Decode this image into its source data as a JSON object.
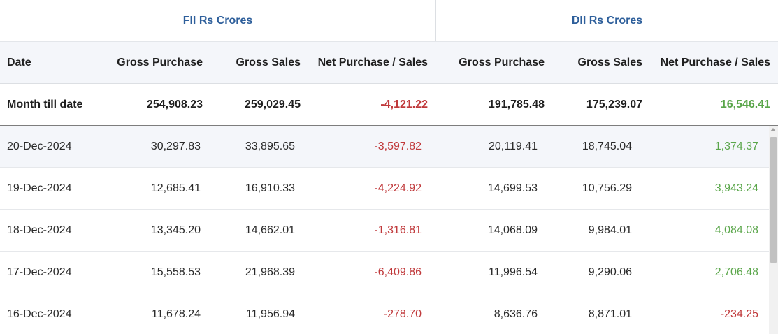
{
  "groups": {
    "fii": "FII Rs Crores",
    "dii": "DII Rs Crores"
  },
  "columns": {
    "date": "Date",
    "fii_gross_purchase": "Gross Purchase",
    "fii_gross_sales": "Gross Sales",
    "fii_net": "Net Purchase / Sales",
    "dii_gross_purchase": "Gross Purchase",
    "dii_gross_sales": "Gross Sales",
    "dii_net": "Net Purchase / Sales"
  },
  "mtd": {
    "label": "Month till date",
    "fii_gp": "254,908.23",
    "fii_gs": "259,029.45",
    "fii_net": "-4,121.22",
    "dii_gp": "191,785.48",
    "dii_gs": "175,239.07",
    "dii_net": "16,546.41"
  },
  "rows": [
    {
      "date": "20-Dec-2024",
      "fii_gp": "30,297.83",
      "fii_gs": "33,895.65",
      "fii_net": "-3,597.82",
      "dii_gp": "20,119.41",
      "dii_gs": "18,745.04",
      "dii_net": "1,374.37"
    },
    {
      "date": "19-Dec-2024",
      "fii_gp": "12,685.41",
      "fii_gs": "16,910.33",
      "fii_net": "-4,224.92",
      "dii_gp": "14,699.53",
      "dii_gs": "10,756.29",
      "dii_net": "3,943.24"
    },
    {
      "date": "18-Dec-2024",
      "fii_gp": "13,345.20",
      "fii_gs": "14,662.01",
      "fii_net": "-1,316.81",
      "dii_gp": "14,068.09",
      "dii_gs": "9,984.01",
      "dii_net": "4,084.08"
    },
    {
      "date": "17-Dec-2024",
      "fii_gp": "15,558.53",
      "fii_gs": "21,968.39",
      "fii_net": "-6,409.86",
      "dii_gp": "11,996.54",
      "dii_gs": "9,290.06",
      "dii_net": "2,706.48"
    },
    {
      "date": "16-Dec-2024",
      "fii_gp": "11,678.24",
      "fii_gs": "11,956.94",
      "fii_net": "-278.70",
      "dii_gp": "8,636.76",
      "dii_gs": "8,871.01",
      "dii_net": "-234.25"
    }
  ],
  "colors": {
    "group_header": "#2e5f9b",
    "negative": "#c0393b",
    "positive": "#5aa64a",
    "header_bg": "#f4f6fa"
  }
}
